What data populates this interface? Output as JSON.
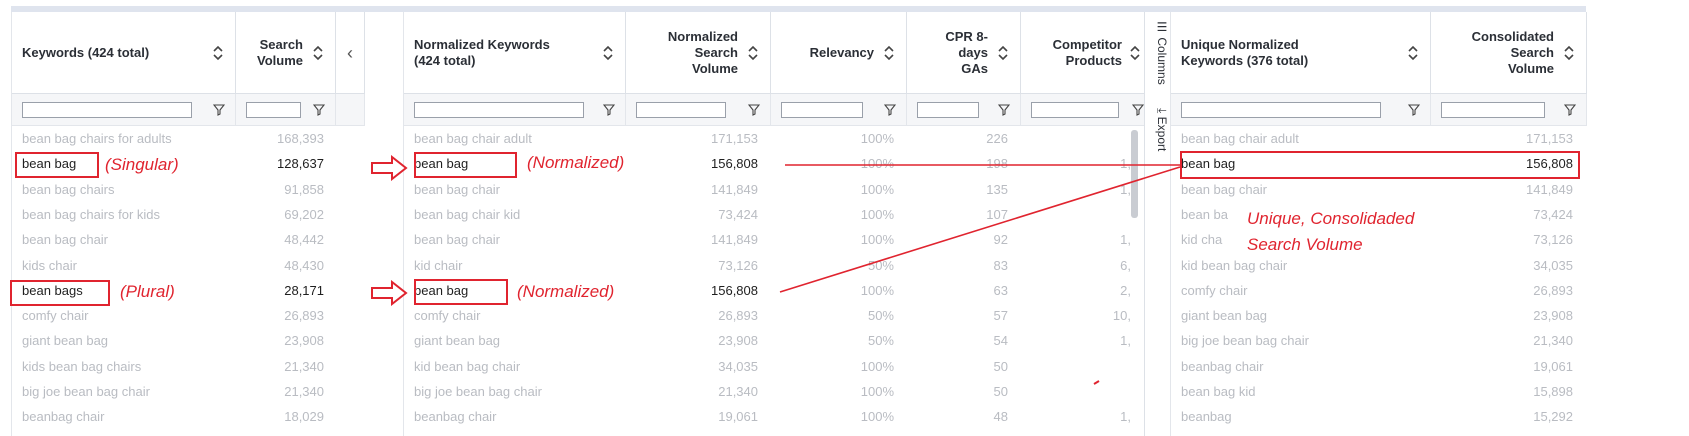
{
  "left": {
    "col1": {
      "title": "Keywords (424 total)"
    },
    "col2": {
      "title_line1": "Search",
      "title_line2": "Volume"
    },
    "collapse_label": "‹",
    "rows": [
      {
        "keyword": "bean bag chairs for adults",
        "volume": "168,393"
      },
      {
        "keyword": "bean bag",
        "volume": "128,637"
      },
      {
        "keyword": "bean bag chairs",
        "volume": "91,858"
      },
      {
        "keyword": "bean bag chairs for kids",
        "volume": "69,202"
      },
      {
        "keyword": "bean bag chair",
        "volume": "48,442"
      },
      {
        "keyword": "kids chair",
        "volume": "48,430"
      },
      {
        "keyword": "bean bags",
        "volume": "28,171"
      },
      {
        "keyword": "comfy chair",
        "volume": "26,893"
      },
      {
        "keyword": "giant bean bag",
        "volume": "23,908"
      },
      {
        "keyword": "kids bean bag chairs",
        "volume": "21,340"
      },
      {
        "keyword": "big joe bean bag chair",
        "volume": "21,340"
      },
      {
        "keyword": "beanbag chair",
        "volume": "18,029"
      }
    ]
  },
  "mid": {
    "col1": {
      "title_line1": "Normalized Keywords",
      "title_line2": "(424 total)"
    },
    "col2": {
      "title_line1": "Normalized",
      "title_line2": "Search",
      "title_line3": "Volume"
    },
    "col3": {
      "title": "Relevancy"
    },
    "col4": {
      "title_line1": "CPR 8-",
      "title_line2": "days",
      "title_line3": "GAs"
    },
    "col5": {
      "title_line1": "Competitor",
      "title_line2": "Products"
    },
    "rows": [
      {
        "keyword": "bean bag chair adult",
        "volume": "171,153",
        "relevancy": "100%",
        "cpr": "226",
        "comp": ""
      },
      {
        "keyword": "bean bag",
        "volume": "156,808",
        "relevancy": "100%",
        "cpr": "198",
        "comp": "1,"
      },
      {
        "keyword": "bean bag chair",
        "volume": "141,849",
        "relevancy": "100%",
        "cpr": "135",
        "comp": "1,"
      },
      {
        "keyword": "bean bag chair kid",
        "volume": "73,424",
        "relevancy": "100%",
        "cpr": "107",
        "comp": ""
      },
      {
        "keyword": "bean bag chair",
        "volume": "141,849",
        "relevancy": "100%",
        "cpr": "92",
        "comp": "1,"
      },
      {
        "keyword": "kid chair",
        "volume": "73,126",
        "relevancy": "50%",
        "cpr": "83",
        "comp": "6,"
      },
      {
        "keyword": "bean bag",
        "volume": "156,808",
        "relevancy": "100%",
        "cpr": "63",
        "comp": "2,"
      },
      {
        "keyword": "comfy chair",
        "volume": "26,893",
        "relevancy": "50%",
        "cpr": "57",
        "comp": "10,"
      },
      {
        "keyword": "giant bean bag",
        "volume": "23,908",
        "relevancy": "50%",
        "cpr": "54",
        "comp": "1,"
      },
      {
        "keyword": "kid bean bag chair",
        "volume": "34,035",
        "relevancy": "100%",
        "cpr": "50",
        "comp": ""
      },
      {
        "keyword": "big joe bean bag chair",
        "volume": "21,340",
        "relevancy": "100%",
        "cpr": "50",
        "comp": ""
      },
      {
        "keyword": "beanbag chair",
        "volume": "19,061",
        "relevancy": "100%",
        "cpr": "48",
        "comp": "1,"
      }
    ]
  },
  "side": {
    "columns_tab": "Columns",
    "export_tab": "Export"
  },
  "right": {
    "col1": {
      "title_line1": "Unique Normalized",
      "title_line2": "Keywords (376 total)"
    },
    "col2": {
      "title_line1": "Consolidated",
      "title_line2": "Search",
      "title_line3": "Volume"
    },
    "rows": [
      {
        "keyword": "bean bag chair adult",
        "volume": "171,153"
      },
      {
        "keyword": "bean bag",
        "volume": "156,808"
      },
      {
        "keyword": "bean bag chair",
        "volume": "141,849"
      },
      {
        "keyword": "bean ba",
        "volume": "73,424"
      },
      {
        "keyword": "kid cha",
        "volume": "73,126"
      },
      {
        "keyword": "kid bean bag chair",
        "volume": "34,035"
      },
      {
        "keyword": "comfy chair",
        "volume": "26,893"
      },
      {
        "keyword": "giant bean bag",
        "volume": "23,908"
      },
      {
        "keyword": "big joe bean bag chair",
        "volume": "21,340"
      },
      {
        "keyword": "beanbag chair",
        "volume": "19,061"
      },
      {
        "keyword": "bean bag kid",
        "volume": "15,898"
      },
      {
        "keyword": "beanbag",
        "volume": "15,292"
      }
    ]
  },
  "annotations": {
    "singular": "(Singular)",
    "plural": "(Plural)",
    "normalized_1": "(Normalized)",
    "normalized_2": "(Normalized)",
    "unique_line1": "Unique, Consolidaded",
    "unique_line2": "Search Volume"
  },
  "colors": {
    "annotation_red": "#e0242f",
    "muted_text": "#b9bcc2",
    "highlight_text": "#1f1f1f"
  }
}
